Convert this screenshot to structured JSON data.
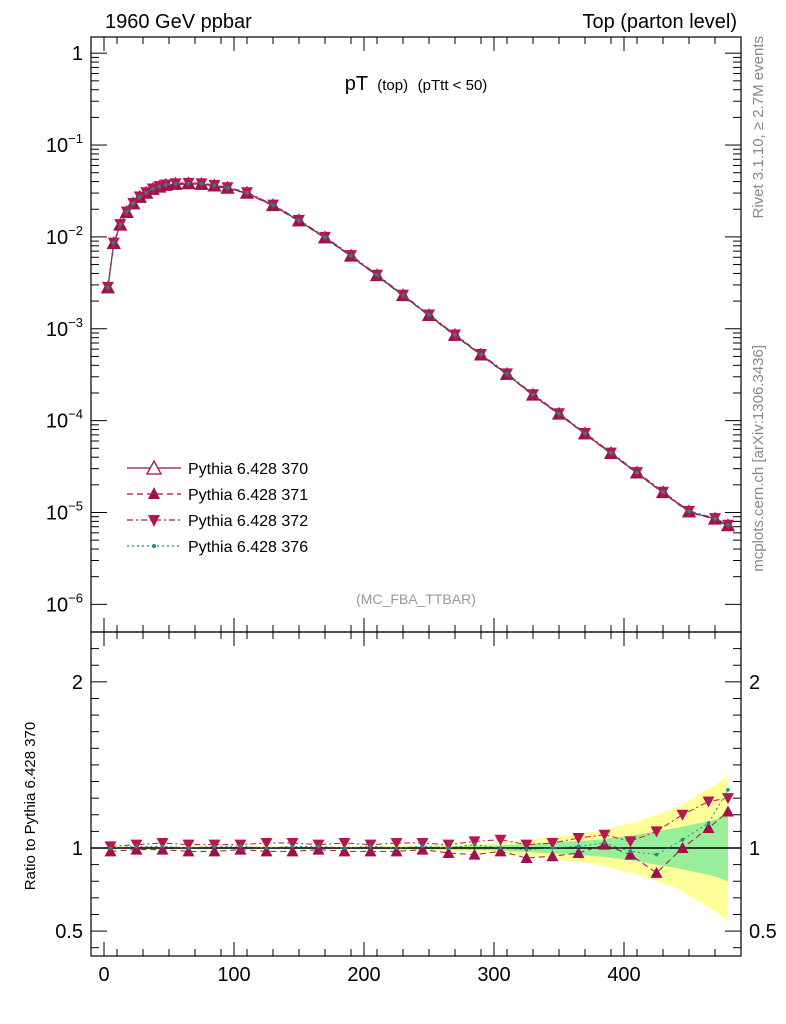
{
  "header": {
    "left": "1960 GeV ppbar",
    "right": "Top (parton level)"
  },
  "side": {
    "upper": "Rivet 3.1.10, ≥ 2.7M events",
    "lower": "mcplots.cern.ch [arXiv:1306.3436]"
  },
  "chart_data": [
    {
      "type": "line",
      "panel": "main",
      "title_main": "pT",
      "title_sub1": "(top)",
      "title_sub2": "(pTtt < 50)",
      "watermark": "(MC_FBA_TTBAR)",
      "xlim": [
        -10,
        490
      ],
      "ylim": [
        5e-07,
        1.5
      ],
      "yscale": "log",
      "x_ticks": [
        0,
        100,
        200,
        300,
        400
      ],
      "x_tick_labels": [
        "0",
        "100",
        "200",
        "300",
        "400"
      ],
      "y_ticks": [
        1e-06,
        1e-05,
        0.0001,
        0.001,
        0.01,
        0.1,
        1
      ],
      "y_tick_labels": [
        {
          "base": "10",
          "exp": "−6"
        },
        {
          "base": "10",
          "exp": "−5"
        },
        {
          "base": "10",
          "exp": "−4"
        },
        {
          "base": "10",
          "exp": "−3"
        },
        {
          "base": "10",
          "exp": "−2"
        },
        {
          "base": "10",
          "exp": "−1"
        },
        {
          "base": "1",
          "exp": ""
        }
      ],
      "legend_position": "lower-left",
      "series": [
        {
          "name": "Pythia 6.428 370",
          "color": "#9b1030",
          "marker": "triangle-open",
          "line": "solid"
        },
        {
          "name": "Pythia 6.428 371",
          "color": "#a0104e",
          "marker": "triangle-up",
          "line": "dashed"
        },
        {
          "name": "Pythia 6.428 372",
          "color": "#b5174f",
          "marker": "triangle-down",
          "line": "dashdot"
        },
        {
          "name": "Pythia 6.428 376",
          "color": "#1a8a8a",
          "marker": "dot",
          "line": "dotted"
        }
      ],
      "x": [
        3,
        7.5,
        12.5,
        17.5,
        22.5,
        27.5,
        32.5,
        37.5,
        42.5,
        47.5,
        55,
        65,
        75,
        85,
        95,
        110,
        130,
        150,
        170,
        190,
        210,
        230,
        250,
        270,
        290,
        310,
        330,
        350,
        370,
        390,
        410,
        430,
        450,
        470,
        480
      ],
      "y": [
        0.0028,
        0.0085,
        0.0135,
        0.0185,
        0.023,
        0.027,
        0.03,
        0.033,
        0.035,
        0.0365,
        0.0375,
        0.038,
        0.0375,
        0.036,
        0.034,
        0.03,
        0.022,
        0.015,
        0.0098,
        0.0062,
        0.0038,
        0.0023,
        0.0014,
        0.00085,
        0.00052,
        0.00032,
        0.00019,
        0.000118,
        7.2e-05,
        4.4e-05,
        2.7e-05,
        1.65e-05,
        1.02e-05,
        8.5e-06,
        7.2e-06
      ]
    },
    {
      "type": "line",
      "panel": "ratio",
      "ylabel": "Ratio to Pythia 6.428 370",
      "xlim": [
        -10,
        490
      ],
      "ylim": [
        0.35,
        2.3
      ],
      "y_ticks": [
        0.5,
        1,
        2
      ],
      "y_tick_labels": [
        "0.5",
        "1",
        "2"
      ],
      "reference": 1,
      "band_x": [
        0,
        100,
        200,
        260,
        300,
        340,
        380,
        410,
        440,
        470,
        480
      ],
      "band_yellow": [
        0.01,
        0.01,
        0.01,
        0.02,
        0.03,
        0.06,
        0.1,
        0.16,
        0.24,
        0.38,
        0.44
      ],
      "band_green": [
        0.005,
        0.005,
        0.005,
        0.01,
        0.015,
        0.03,
        0.05,
        0.08,
        0.12,
        0.17,
        0.2
      ],
      "x": [
        5,
        25,
        45,
        65,
        85,
        105,
        125,
        145,
        165,
        185,
        205,
        225,
        245,
        265,
        285,
        305,
        325,
        345,
        365,
        385,
        405,
        425,
        445,
        465,
        480
      ],
      "series": [
        {
          "name": "Pythia 6.428 371",
          "values": [
            0.98,
            0.99,
            0.99,
            0.98,
            0.98,
            0.99,
            0.98,
            0.98,
            0.99,
            0.98,
            0.98,
            0.98,
            0.99,
            0.97,
            0.96,
            0.98,
            0.94,
            0.95,
            0.97,
            1.02,
            0.96,
            0.85,
            1.0,
            1.12,
            1.22
          ]
        },
        {
          "name": "Pythia 6.428 372",
          "values": [
            1.01,
            1.02,
            1.03,
            1.02,
            1.02,
            1.02,
            1.03,
            1.03,
            1.02,
            1.03,
            1.02,
            1.03,
            1.03,
            1.02,
            1.04,
            1.05,
            1.02,
            1.03,
            1.06,
            1.08,
            1.04,
            1.1,
            1.2,
            1.28,
            1.3
          ]
        },
        {
          "name": "Pythia 6.428 376",
          "values": [
            1.0,
            1.01,
            1.01,
            1.0,
            1.01,
            1.01,
            1.0,
            1.01,
            1.01,
            1.0,
            1.01,
            1.0,
            1.01,
            1.0,
            1.02,
            1.0,
            0.99,
            1.0,
            1.01,
            1.03,
            0.98,
            0.96,
            1.05,
            1.15,
            1.35
          ]
        }
      ]
    }
  ]
}
